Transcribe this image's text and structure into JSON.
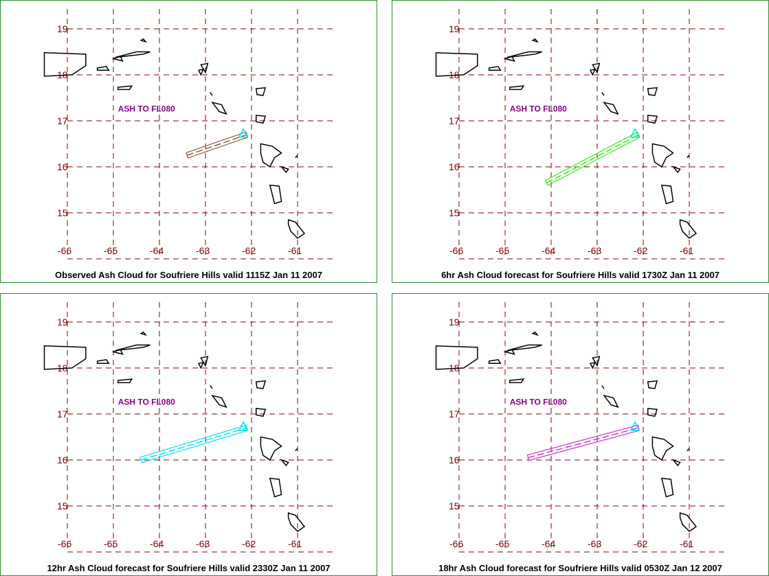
{
  "grid_color": "#800000",
  "coast_color": "#000000",
  "volcano_color": "#00e5ee",
  "annotation_color": "#8b008b",
  "lat_labels": [
    "19",
    "18",
    "17",
    "16",
    "15"
  ],
  "lon_labels": [
    "-66",
    "-65",
    "-64",
    "-63",
    "-62",
    "-61"
  ],
  "panels": [
    {
      "caption": "Observed Ash Cloud for Soufriere  Hills valid 1115Z Jan 11 2007",
      "annotation": "ASH TO FL080",
      "cloud_color": "#8b5a3c",
      "cloud_start": [
        -63.4,
        16.25
      ],
      "cloud_end": [
        -62.1,
        16.7
      ]
    },
    {
      "caption": "6hr Ash Cloud forecast for Soufriere  Hills valid 1730Z Jan 11 2007",
      "annotation": "ASH TO FL080",
      "cloud_color": "#33ee11",
      "cloud_start": [
        -64.1,
        15.65
      ],
      "cloud_end": [
        -62.1,
        16.7
      ]
    },
    {
      "caption": "12hr Ash Cloud forecast for Soufriere  Hills valid 2330Z Jan 11 2007",
      "annotation": "ASH TO FL080",
      "cloud_color": "#00e5ee",
      "cloud_start": [
        -64.4,
        16.0
      ],
      "cloud_end": [
        -62.1,
        16.7
      ]
    },
    {
      "caption": "18hr Ash Cloud forecast for Soufriere  Hills valid 0530Z Jan 12 2007",
      "annotation": "ASH TO FL080",
      "cloud_color": "#cc33cc",
      "cloud_start": [
        -64.5,
        16.05
      ],
      "cloud_end": [
        -62.1,
        16.7
      ]
    }
  ],
  "chart_data": {
    "type": "map",
    "volcano": {
      "name": "Soufriere Hills",
      "lon": -62.18,
      "lat": 16.72
    },
    "xlim": [
      -66,
      -61
    ],
    "ylim": [
      15,
      19
    ]
  }
}
